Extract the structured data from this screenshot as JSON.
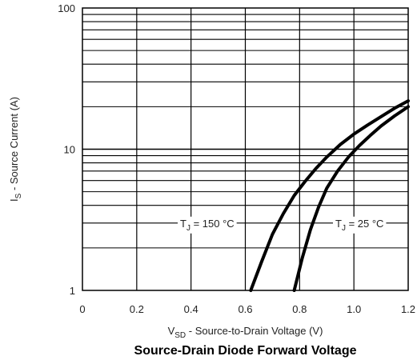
{
  "chart_data": {
    "type": "line",
    "title": "Source-Drain Diode Forward Voltage",
    "xlabel": {
      "main": "V",
      "sub": "SD",
      "rest": " - Source-to-Drain Voltage (V)"
    },
    "ylabel": {
      "main": "I",
      "sub": "S",
      "rest": " - Source Current (A)"
    },
    "xlim": [
      0,
      1.2
    ],
    "ylim": [
      1,
      100
    ],
    "yscale": "log",
    "grid": true,
    "x_ticks": [
      {
        "value": 0,
        "label": "0"
      },
      {
        "value": 0.2,
        "label": "0.2"
      },
      {
        "value": 0.4,
        "label": "0.4"
      },
      {
        "value": 0.6,
        "label": "0.6"
      },
      {
        "value": 0.8,
        "label": "0.8"
      },
      {
        "value": 1.0,
        "label": "1.0"
      },
      {
        "value": 1.2,
        "label": "1.2"
      }
    ],
    "y_ticks": [
      {
        "value": 1,
        "label": "1"
      },
      {
        "value": 10,
        "label": "10"
      },
      {
        "value": 100,
        "label": "100"
      }
    ],
    "series": [
      {
        "label": {
          "main": "T",
          "sub": "J",
          "rest": " = 150 °C"
        },
        "x": [
          0.62,
          0.66,
          0.7,
          0.74,
          0.78,
          0.82,
          0.86,
          0.9,
          0.95,
          1.0,
          1.05,
          1.1,
          1.15,
          1.2
        ],
        "y": [
          1.0,
          1.6,
          2.5,
          3.5,
          4.7,
          5.9,
          7.3,
          8.8,
          10.8,
          12.8,
          14.8,
          17.0,
          19.5,
          22.0
        ]
      },
      {
        "label": {
          "main": "T",
          "sub": "J",
          "rest": " = 25 °C"
        },
        "x": [
          0.78,
          0.81,
          0.84,
          0.87,
          0.9,
          0.94,
          0.98,
          1.02,
          1.06,
          1.1,
          1.15,
          1.2
        ],
        "y": [
          1.0,
          1.7,
          2.7,
          3.9,
          5.3,
          7.0,
          8.8,
          10.6,
          12.5,
          14.6,
          17.2,
          20.0
        ]
      }
    ]
  }
}
